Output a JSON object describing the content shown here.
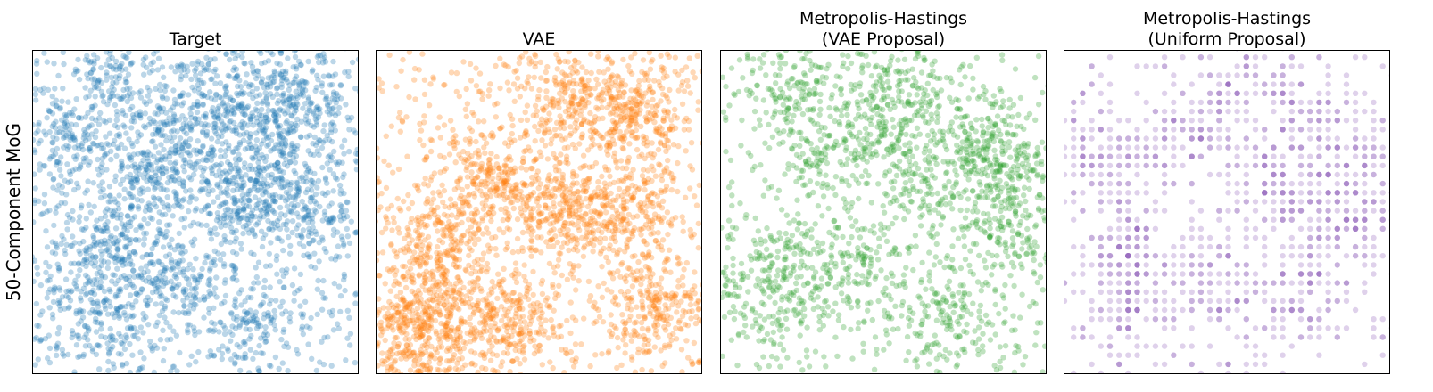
{
  "figure": {
    "row_label": "50-Component MoG"
  },
  "chart_data": [
    {
      "type": "scatter",
      "title": "Target",
      "color": "#1f77b4",
      "point_opacity": 0.3,
      "grid": false,
      "xlim": [
        0,
        1
      ],
      "ylim": [
        0,
        1
      ],
      "xticks": [],
      "yticks": [],
      "points_shown": 3000,
      "dense_regions": [
        [
          0.24,
          0.9
        ],
        [
          0.56,
          0.87
        ],
        [
          0.72,
          0.78
        ],
        [
          0.47,
          0.72
        ],
        [
          0.74,
          0.6
        ],
        [
          0.62,
          0.53
        ],
        [
          0.22,
          0.37
        ],
        [
          0.2,
          0.18
        ],
        [
          0.42,
          0.28
        ],
        [
          0.68,
          0.18
        ],
        [
          0.1,
          0.72
        ],
        [
          0.9,
          0.5
        ],
        [
          0.35,
          0.6
        ],
        [
          0.85,
          0.88
        ]
      ]
    },
    {
      "type": "scatter",
      "title": "VAE",
      "color": "#ff7f0e",
      "point_opacity": 0.3,
      "grid": false,
      "xlim": [
        0,
        1
      ],
      "ylim": [
        0,
        1
      ],
      "xticks": [],
      "yticks": [],
      "points_shown": 3000,
      "dense_regions": [
        [
          0.17,
          0.22
        ],
        [
          0.2,
          0.4
        ],
        [
          0.12,
          0.1
        ],
        [
          0.6,
          0.85
        ],
        [
          0.8,
          0.8
        ],
        [
          0.35,
          0.6
        ],
        [
          0.55,
          0.5
        ],
        [
          0.75,
          0.5
        ],
        [
          0.4,
          0.15
        ],
        [
          0.85,
          0.2
        ]
      ]
    },
    {
      "type": "scatter",
      "title": "Metropolis-Hastings\n(VAE Proposal)",
      "color": "#2ca02c",
      "point_opacity": 0.3,
      "grid": false,
      "xlim": [
        0,
        1
      ],
      "ylim": [
        0,
        1
      ],
      "xticks": [],
      "yticks": [],
      "points_shown": 2000,
      "dense_regions": [
        [
          0.22,
          0.88
        ],
        [
          0.57,
          0.9
        ],
        [
          0.8,
          0.7
        ],
        [
          0.3,
          0.7
        ],
        [
          0.6,
          0.55
        ],
        [
          0.85,
          0.65
        ],
        [
          0.2,
          0.35
        ],
        [
          0.15,
          0.2
        ],
        [
          0.42,
          0.3
        ],
        [
          0.7,
          0.2
        ],
        [
          0.5,
          0.75
        ],
        [
          0.9,
          0.45
        ]
      ]
    },
    {
      "type": "scatter",
      "title": "Metropolis-Hastings\n(Uniform Proposal)",
      "color": "#9467bd",
      "point_opacity": 0.3,
      "grid": false,
      "xlim": [
        0,
        1
      ],
      "ylim": [
        0,
        1
      ],
      "xticks": [],
      "yticks": [],
      "points_shown": 1300,
      "lattice_step": 0.028,
      "dense_regions": [
        [
          0.55,
          0.88
        ],
        [
          0.78,
          0.8
        ],
        [
          0.35,
          0.72
        ],
        [
          0.65,
          0.6
        ],
        [
          0.88,
          0.62
        ],
        [
          0.2,
          0.38
        ],
        [
          0.22,
          0.2
        ],
        [
          0.45,
          0.3
        ],
        [
          0.68,
          0.22
        ],
        [
          0.12,
          0.65
        ],
        [
          0.85,
          0.45
        ]
      ]
    }
  ]
}
